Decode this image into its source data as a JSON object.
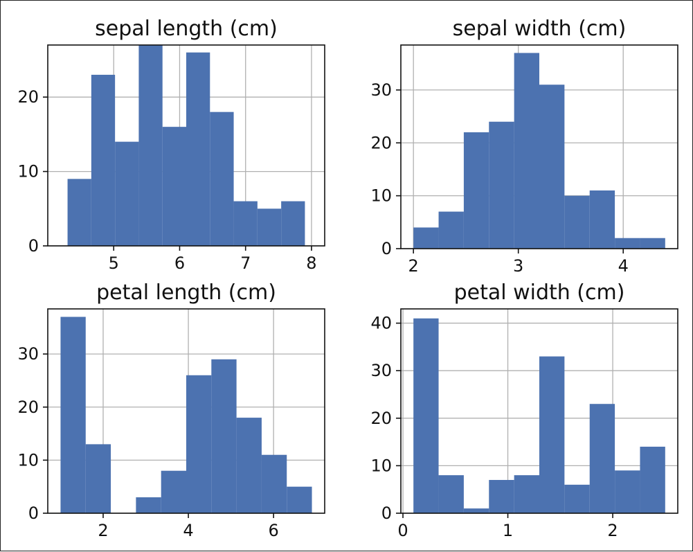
{
  "chart_data": [
    {
      "type": "bar",
      "title": "sepal length (cm)",
      "xlim": [
        4.0,
        8.2
      ],
      "ylim": [
        0,
        27
      ],
      "xticks": [
        5,
        6,
        7,
        8
      ],
      "yticks": [
        0,
        10,
        20
      ],
      "grid": true,
      "bin_edges": [
        4.3,
        4.66,
        5.02,
        5.38,
        5.74,
        6.1,
        6.46,
        6.82,
        7.18,
        7.54,
        7.9
      ],
      "counts": [
        9,
        23,
        14,
        27,
        16,
        26,
        18,
        6,
        5,
        6
      ],
      "color": "#4c72b0"
    },
    {
      "type": "bar",
      "title": "sepal width (cm)",
      "xlim": [
        1.88,
        4.52
      ],
      "ylim": [
        0,
        38.5
      ],
      "xticks": [
        2,
        3,
        4
      ],
      "yticks": [
        0,
        10,
        20,
        30
      ],
      "grid": true,
      "bin_edges": [
        2.0,
        2.24,
        2.48,
        2.72,
        2.96,
        3.2,
        3.44,
        3.68,
        3.92,
        4.16,
        4.4
      ],
      "counts": [
        4,
        7,
        22,
        24,
        37,
        31,
        10,
        11,
        2,
        2
      ],
      "color": "#4c72b0"
    },
    {
      "type": "bar",
      "title": "petal length (cm)",
      "xlim": [
        0.7,
        7.2
      ],
      "ylim": [
        0,
        38.5
      ],
      "xticks": [
        2,
        4,
        6
      ],
      "yticks": [
        0,
        10,
        20,
        30
      ],
      "grid": true,
      "bin_edges": [
        1.0,
        1.59,
        2.18,
        2.77,
        3.36,
        3.95,
        4.54,
        5.13,
        5.72,
        6.31,
        6.9
      ],
      "counts": [
        37,
        13,
        0,
        3,
        8,
        26,
        29,
        18,
        11,
        5
      ],
      "color": "#4c72b0"
    },
    {
      "type": "bar",
      "title": "petal width (cm)",
      "xlim": [
        -0.02,
        2.62
      ],
      "ylim": [
        0,
        43
      ],
      "xticks": [
        0,
        1,
        2
      ],
      "yticks": [
        0,
        10,
        20,
        30,
        40
      ],
      "grid": true,
      "bin_edges": [
        0.1,
        0.34,
        0.58,
        0.82,
        1.06,
        1.3,
        1.54,
        1.78,
        2.02,
        2.26,
        2.5
      ],
      "counts": [
        41,
        8,
        1,
        7,
        8,
        33,
        6,
        23,
        9,
        14
      ],
      "color": "#4c72b0"
    }
  ]
}
